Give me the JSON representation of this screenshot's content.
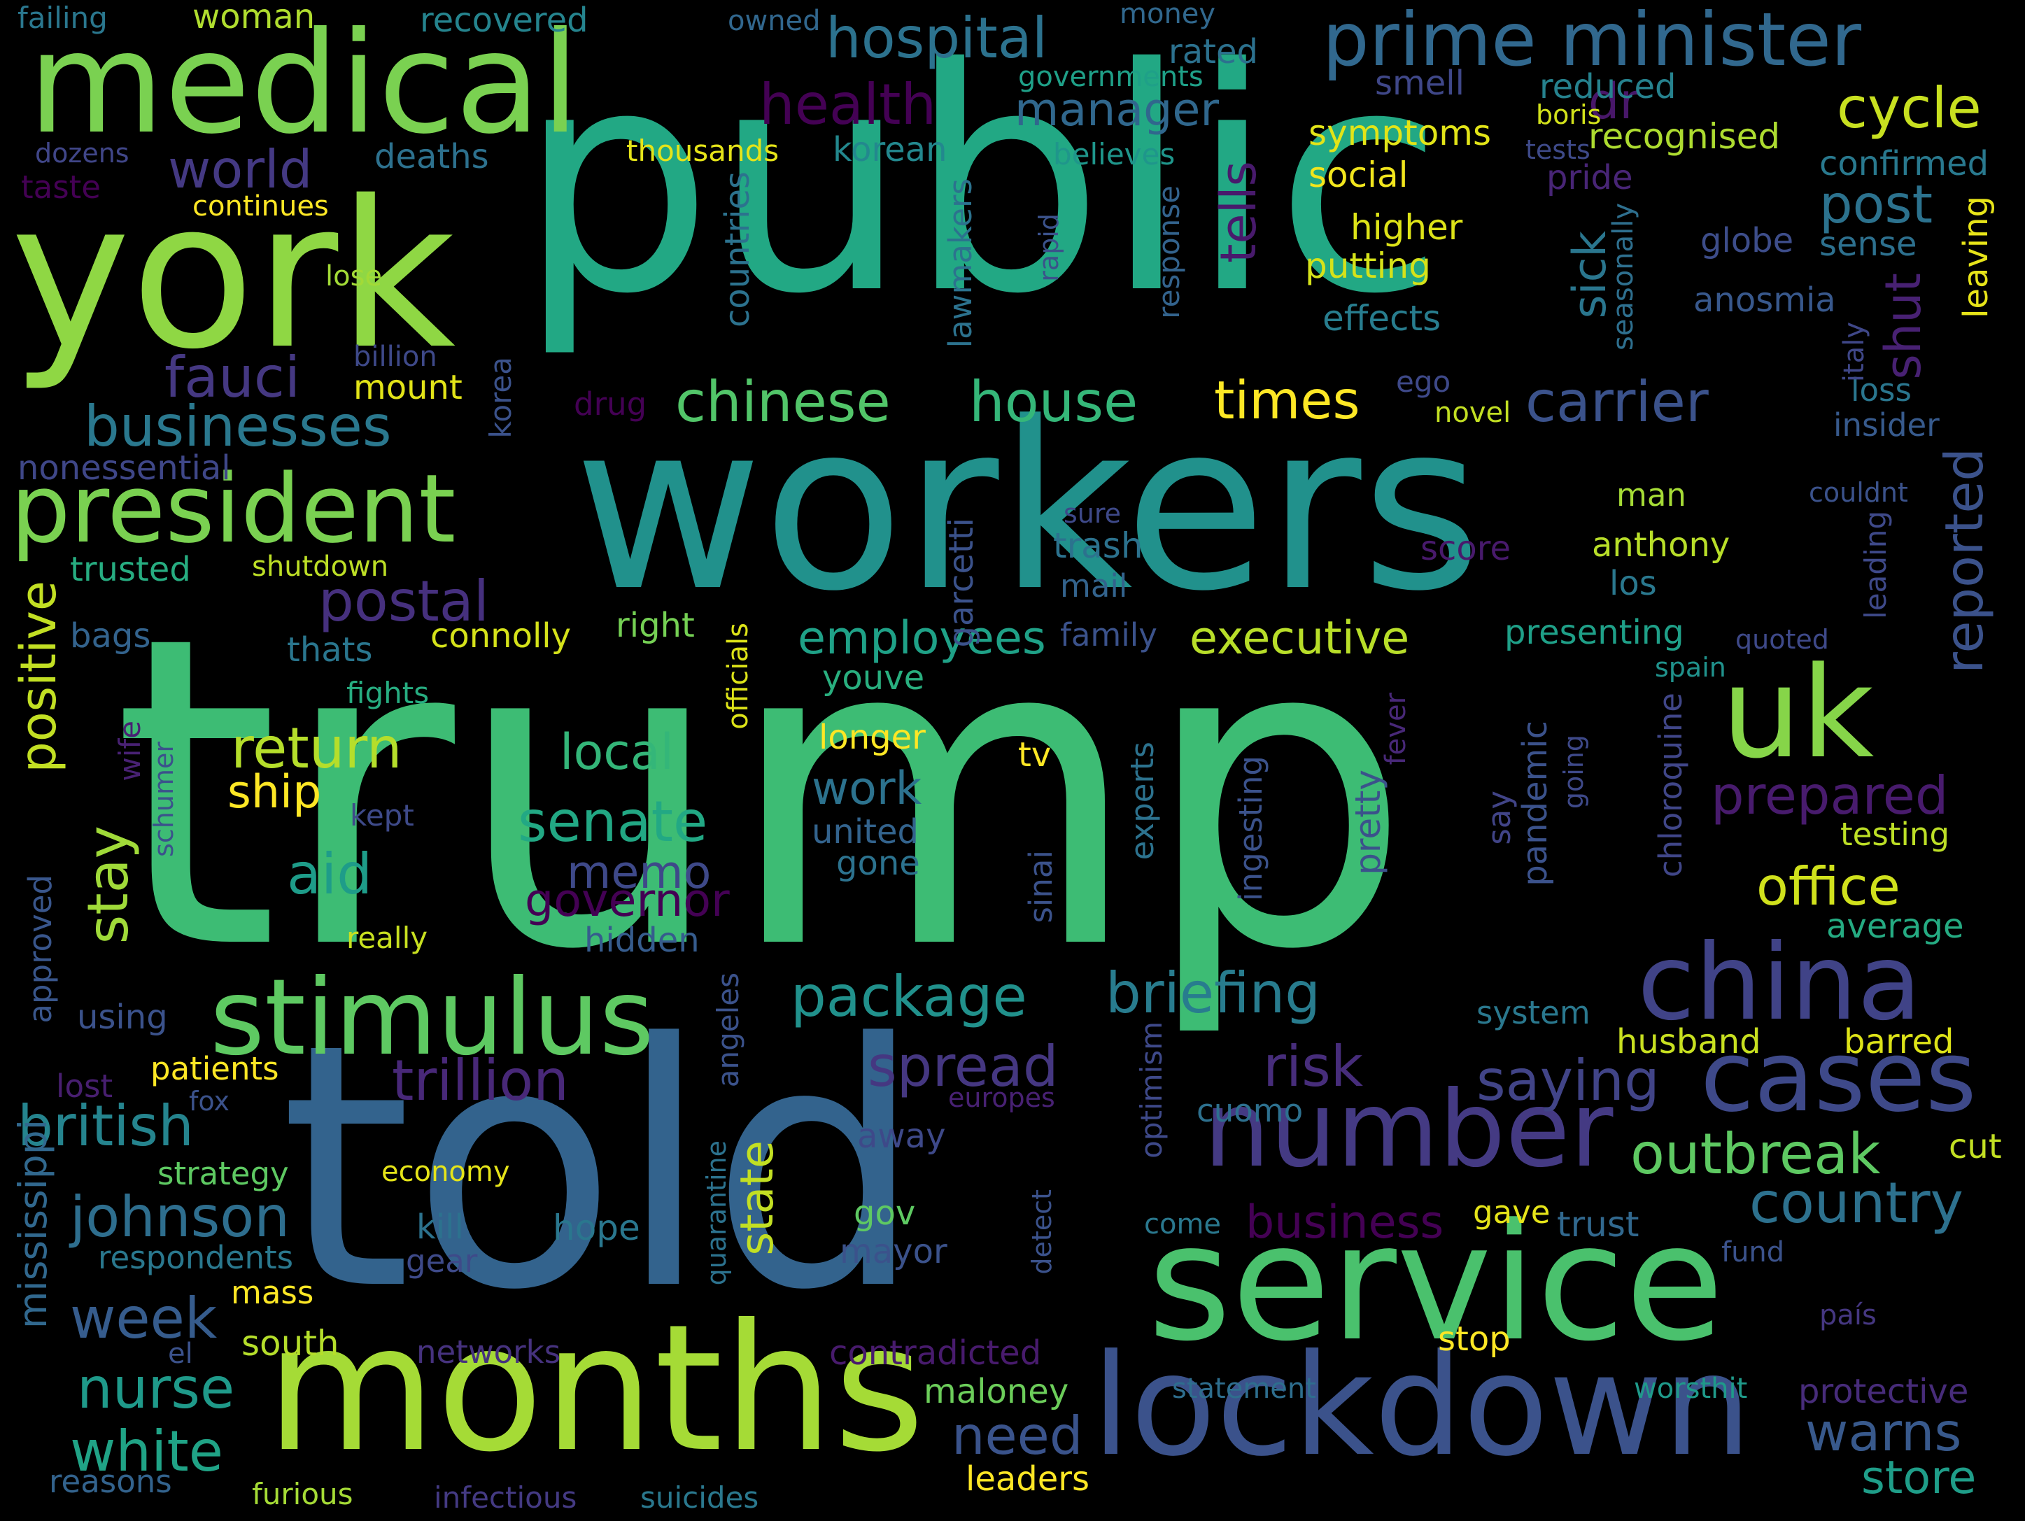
{
  "words": [
    {
      "text": "trump",
      "color": "#3dbc74"
    },
    {
      "text": "public",
      "color": "#22a884"
    },
    {
      "text": "workers",
      "color": "#21918c"
    },
    {
      "text": "told",
      "color": "#33638d"
    },
    {
      "text": "service",
      "color": "#4ac16d"
    },
    {
      "text": "york",
      "color": "#8fd744"
    },
    {
      "text": "medical",
      "color": "#7ad151"
    },
    {
      "text": "months",
      "color": "#a5db36"
    },
    {
      "text": "lockdown",
      "color": "#3b528b"
    },
    {
      "text": "china",
      "color": "#404387"
    },
    {
      "text": "cases",
      "color": "#3e4989"
    },
    {
      "text": "number",
      "color": "#443a83"
    },
    {
      "text": "stimulus",
      "color": "#5ec962"
    },
    {
      "text": "president",
      "color": "#7ad151"
    },
    {
      "text": "uk",
      "color": "#86d549"
    },
    {
      "text": "prime minister",
      "color": "#31688e"
    },
    {
      "text": "hospital",
      "color": "#2c728e"
    },
    {
      "text": "chinese",
      "color": "#52c569"
    },
    {
      "text": "house",
      "color": "#35b779"
    },
    {
      "text": "businesses",
      "color": "#2a788e"
    },
    {
      "text": "package",
      "color": "#21918c"
    },
    {
      "text": "briefing",
      "color": "#287c8e"
    },
    {
      "text": "trillion",
      "color": "#482878"
    },
    {
      "text": "spread",
      "color": "#453781"
    },
    {
      "text": "risk",
      "color": "#472d7b"
    },
    {
      "text": "saying",
      "color": "#414487"
    },
    {
      "text": "outbreak",
      "color": "#5ec962"
    },
    {
      "text": "country",
      "color": "#2d718e"
    },
    {
      "text": "british",
      "color": "#25848e"
    },
    {
      "text": "johnson",
      "color": "#2e6e8e"
    },
    {
      "text": "nurse",
      "color": "#1f9a8a"
    },
    {
      "text": "white",
      "color": "#20a386"
    },
    {
      "text": "week",
      "color": "#365c8d"
    },
    {
      "text": "need",
      "color": "#3a538b"
    },
    {
      "text": "warns",
      "color": "#38598c"
    },
    {
      "text": "store",
      "color": "#1f9e89"
    },
    {
      "text": "senate",
      "color": "#22a884"
    },
    {
      "text": "return",
      "color": "#b5de2b"
    },
    {
      "text": "aid",
      "color": "#1e9c89"
    },
    {
      "text": "postal",
      "color": "#46307e"
    },
    {
      "text": "fauci",
      "color": "#453882"
    },
    {
      "text": "world",
      "color": "#443983"
    },
    {
      "text": "health",
      "color": "#440154"
    },
    {
      "text": "manager",
      "color": "#30678d"
    },
    {
      "text": "cycle",
      "color": "#c8e020"
    },
    {
      "text": "post",
      "color": "#2c728e"
    },
    {
      "text": "carrier",
      "color": "#3b528b"
    },
    {
      "text": "times",
      "color": "#fde725"
    },
    {
      "text": "executive",
      "color": "#b8de29"
    },
    {
      "text": "employees",
      "color": "#1fa187"
    },
    {
      "text": "office",
      "color": "#d0e11c"
    },
    {
      "text": "prepared",
      "color": "#481b6d"
    },
    {
      "text": "reported",
      "color": "#3b528b"
    },
    {
      "text": "positive",
      "color": "#c2df23"
    },
    {
      "text": "stay",
      "color": "#a0da39"
    },
    {
      "text": "local",
      "color": "#34b679"
    },
    {
      "text": "ship",
      "color": "#fde725"
    },
    {
      "text": "work",
      "color": "#2c728e"
    },
    {
      "text": "memo",
      "color": "#3e4989"
    },
    {
      "text": "governor",
      "color": "#440154"
    },
    {
      "text": "business",
      "color": "#440154"
    },
    {
      "text": "tells",
      "color": "#481a6c"
    },
    {
      "text": "shut",
      "color": "#482173"
    },
    {
      "text": "sick",
      "color": "#2a768e"
    },
    {
      "text": "dr",
      "color": "#481769"
    },
    {
      "text": "symptoms",
      "color": "#e2e418"
    },
    {
      "text": "recognised",
      "color": "#addc30"
    },
    {
      "text": "social",
      "color": "#f1e51d"
    },
    {
      "text": "higher",
      "color": "#dde318"
    },
    {
      "text": "putting",
      "color": "#d5e21a"
    },
    {
      "text": "effects",
      "color": "#287d8e"
    },
    {
      "text": "confirmed",
      "color": "#29798e"
    },
    {
      "text": "globe",
      "color": "#3d4d8a"
    },
    {
      "text": "sense",
      "color": "#2d708e"
    },
    {
      "text": "anosmia",
      "color": "#38588c"
    },
    {
      "text": "loss",
      "color": "#2a768e"
    },
    {
      "text": "insider",
      "color": "#375a8c"
    },
    {
      "text": "leaving",
      "color": "#e7e419"
    },
    {
      "text": "italy",
      "color": "#3f4788"
    },
    {
      "text": "seasonally",
      "color": "#2e6f8e"
    },
    {
      "text": "deaths",
      "color": "#2d718e"
    },
    {
      "text": "thousands",
      "color": "#e5e419"
    },
    {
      "text": "korean",
      "color": "#23888e"
    },
    {
      "text": "believes",
      "color": "#1f968b"
    },
    {
      "text": "tests",
      "color": "#3e4a89"
    },
    {
      "text": "pride",
      "color": "#482576"
    },
    {
      "text": "reduced",
      "color": "#26828e"
    },
    {
      "text": "boris",
      "color": "#d2e21b"
    },
    {
      "text": "smell",
      "color": "#3f4788"
    },
    {
      "text": "governments",
      "color": "#1fa088"
    },
    {
      "text": "money",
      "color": "#31688e"
    },
    {
      "text": "rated",
      "color": "#2c718e"
    },
    {
      "text": "owned",
      "color": "#31678e"
    },
    {
      "text": "recovered",
      "color": "#25848e"
    },
    {
      "text": "woman",
      "color": "#b0dd2f"
    },
    {
      "text": "failing",
      "color": "#2a778e"
    },
    {
      "text": "dozens",
      "color": "#404688"
    },
    {
      "text": "taste",
      "color": "#440154"
    },
    {
      "text": "continues",
      "color": "#fde725"
    },
    {
      "text": "lose",
      "color": "#a2da37"
    },
    {
      "text": "billion",
      "color": "#3e4989"
    },
    {
      "text": "mount",
      "color": "#e2e418"
    },
    {
      "text": "nonessential",
      "color": "#3f4788"
    },
    {
      "text": "trusted",
      "color": "#27ad81"
    },
    {
      "text": "shutdown",
      "color": "#bddf26"
    },
    {
      "text": "bags",
      "color": "#33638d"
    },
    {
      "text": "thats",
      "color": "#2a768e"
    },
    {
      "text": "connolly",
      "color": "#d5e21a"
    },
    {
      "text": "right",
      "color": "#75d054"
    },
    {
      "text": "officials",
      "color": "#dde318"
    },
    {
      "text": "youve",
      "color": "#29af7f"
    },
    {
      "text": "longer",
      "color": "#fde725"
    },
    {
      "text": "tv",
      "color": "#fde725"
    },
    {
      "text": "united",
      "color": "#33638d"
    },
    {
      "text": "gone",
      "color": "#2c728e"
    },
    {
      "text": "fights",
      "color": "#27ad81"
    },
    {
      "text": "wife",
      "color": "#482173"
    },
    {
      "text": "schumer",
      "color": "#3b528b"
    },
    {
      "text": "kept",
      "color": "#3e4a89"
    },
    {
      "text": "approved",
      "color": "#39568c"
    },
    {
      "text": "really",
      "color": "#c8e020"
    },
    {
      "text": "hidden",
      "color": "#365c8d"
    },
    {
      "text": "using",
      "color": "#3b528b"
    },
    {
      "text": "patients",
      "color": "#fde725"
    },
    {
      "text": "lost",
      "color": "#481f70"
    },
    {
      "text": "fox",
      "color": "#3b528b"
    },
    {
      "text": "strategy",
      "color": "#5ec962"
    },
    {
      "text": "economy",
      "color": "#e5e419"
    },
    {
      "text": "mississippi",
      "color": "#31688e"
    },
    {
      "text": "respondents",
      "color": "#2a788e"
    },
    {
      "text": "kill",
      "color": "#2c728e"
    },
    {
      "text": "hope",
      "color": "#2a778e"
    },
    {
      "text": "gear",
      "color": "#3e4a89"
    },
    {
      "text": "mass",
      "color": "#fde725"
    },
    {
      "text": "south",
      "color": "#b5de2b"
    },
    {
      "text": "el",
      "color": "#3b528b"
    },
    {
      "text": "networks",
      "color": "#46327e"
    },
    {
      "text": "reasons",
      "color": "#33638d"
    },
    {
      "text": "furious",
      "color": "#a5db36"
    },
    {
      "text": "infectious",
      "color": "#443a83"
    },
    {
      "text": "suicides",
      "color": "#2a788e"
    },
    {
      "text": "leaders",
      "color": "#fde725"
    },
    {
      "text": "maloney",
      "color": "#6ccd5a"
    },
    {
      "text": "contradicted",
      "color": "#481b6d"
    },
    {
      "text": "statement",
      "color": "#2e6e8e"
    },
    {
      "text": "worsthit",
      "color": "#1f9a8a"
    },
    {
      "text": "protective",
      "color": "#472c7a"
    },
    {
      "text": "país",
      "color": "#453781"
    },
    {
      "text": "stop",
      "color": "#fde725"
    },
    {
      "text": "fund",
      "color": "#3b528b"
    },
    {
      "text": "trust",
      "color": "#31688e"
    },
    {
      "text": "gave",
      "color": "#e5e419"
    },
    {
      "text": "cut",
      "color": "#c2df23"
    },
    {
      "text": "come",
      "color": "#2a788e"
    },
    {
      "text": "gov",
      "color": "#5ec962"
    },
    {
      "text": "mayor",
      "color": "#3b528b"
    },
    {
      "text": "away",
      "color": "#3e4989"
    },
    {
      "text": "cuomo",
      "color": "#2d708e"
    },
    {
      "text": "europes",
      "color": "#482173"
    },
    {
      "text": "optimism",
      "color": "#3e4989"
    },
    {
      "text": "detect",
      "color": "#3b528b"
    },
    {
      "text": "quarantine",
      "color": "#2c728e"
    },
    {
      "text": "angeles",
      "color": "#3b528b"
    },
    {
      "text": "state",
      "color": "#c2df23"
    },
    {
      "text": "system",
      "color": "#2a788e"
    },
    {
      "text": "husband",
      "color": "#c8e020"
    },
    {
      "text": "barred",
      "color": "#dde318"
    },
    {
      "text": "average",
      "color": "#25ab82"
    },
    {
      "text": "testing",
      "color": "#bddf26"
    },
    {
      "text": "chloroquine",
      "color": "#404688"
    },
    {
      "text": "going",
      "color": "#3e4989"
    },
    {
      "text": "pandemic",
      "color": "#3b528b"
    },
    {
      "text": "say",
      "color": "#414487"
    },
    {
      "text": "pretty",
      "color": "#3b528b"
    },
    {
      "text": "fever",
      "color": "#482878"
    },
    {
      "text": "ingesting",
      "color": "#3b528b"
    },
    {
      "text": "experts",
      "color": "#2c728e"
    },
    {
      "text": "sinai",
      "color": "#3b528b"
    },
    {
      "text": "spain",
      "color": "#20928c"
    },
    {
      "text": "quoted",
      "color": "#3e4989"
    },
    {
      "text": "presenting",
      "color": "#1fa088"
    },
    {
      "text": "leading",
      "color": "#3e4989"
    },
    {
      "text": "couldnt",
      "color": "#3b528b"
    },
    {
      "text": "los",
      "color": "#2a788e"
    },
    {
      "text": "anthony",
      "color": "#b8de29"
    },
    {
      "text": "man",
      "color": "#a5db36"
    },
    {
      "text": "score",
      "color": "#481a6c"
    },
    {
      "text": "trash",
      "color": "#2c728e"
    },
    {
      "text": "mail",
      "color": "#33638d"
    },
    {
      "text": "sure",
      "color": "#3e4989"
    },
    {
      "text": "family",
      "color": "#3b528b"
    },
    {
      "text": "garcetti",
      "color": "#3b528b"
    },
    {
      "text": "lawmakers",
      "color": "#2c728e"
    },
    {
      "text": "rapid",
      "color": "#3b528b"
    },
    {
      "text": "response",
      "color": "#33638d"
    },
    {
      "text": "countries",
      "color": "#2c728e"
    },
    {
      "text": "korea",
      "color": "#3b528b"
    },
    {
      "text": "drug",
      "color": "#440154"
    },
    {
      "text": "ego",
      "color": "#3e4989"
    },
    {
      "text": "novel",
      "color": "#c2df23"
    }
  ]
}
